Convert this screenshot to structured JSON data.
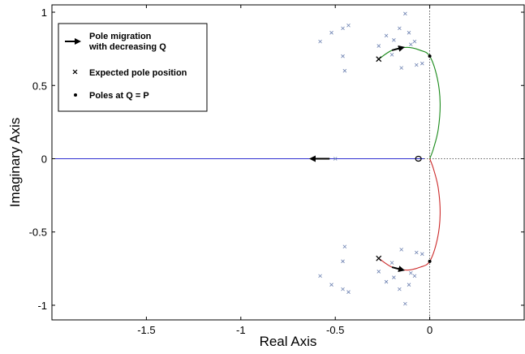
{
  "chart_data": {
    "type": "scatter",
    "title": "",
    "xlabel": "Real Axis",
    "ylabel": "Imaginary Axis",
    "xlim": [
      -2.0,
      0.5
    ],
    "ylim": [
      -1.1,
      1.05
    ],
    "xticks": [
      -1.5,
      -1,
      -0.5,
      0
    ],
    "xtick_labels": [
      "-1.5",
      "-1",
      "-0.5",
      "0"
    ],
    "yticks": [
      1,
      0.5,
      0,
      -0.5,
      -1
    ],
    "ytick_labels": [
      "1",
      "0.5",
      "0",
      "-0.5",
      "-1"
    ],
    "grid": false,
    "legend_position": "top-left",
    "legend": [
      {
        "label": "Pole migration\nwith decreasing Q",
        "marker": "arrow"
      },
      {
        "label": "Expected pole position",
        "marker": "x"
      },
      {
        "label": "Poles at Q = P",
        "marker": "dot"
      }
    ],
    "reference_lines": [
      {
        "orientation": "vertical",
        "value": 0,
        "style": "dotted"
      },
      {
        "orientation": "horizontal",
        "value": 0,
        "style": "dotted"
      }
    ],
    "series": [
      {
        "color": "#3030d0",
        "style": "line",
        "x": [
          -2.0,
          -0.03
        ],
        "y": [
          0,
          0
        ]
      },
      {
        "color": "#1a8a1a",
        "style": "line",
        "x": [
          -0.27,
          -0.2,
          -0.12,
          -0.05,
          0.0,
          0.04,
          0.055,
          0.045,
          0.02,
          0.0
        ],
        "y": [
          0.68,
          0.74,
          0.76,
          0.74,
          0.7,
          0.55,
          0.38,
          0.2,
          0.07,
          0.0
        ]
      },
      {
        "color": "#cc2a2a",
        "style": "line",
        "x": [
          0.0,
          0.02,
          0.045,
          0.055,
          0.04,
          0.0,
          -0.05,
          -0.12,
          -0.2,
          -0.27
        ],
        "y": [
          0.0,
          -0.07,
          -0.2,
          -0.38,
          -0.55,
          -0.7,
          -0.74,
          -0.76,
          -0.74,
          -0.68
        ]
      },
      {
        "name": "Expected pole position",
        "color": "#6a7fb0",
        "style": "x",
        "x": [
          -0.58,
          -0.52,
          -0.46,
          -0.43,
          -0.46,
          -0.45,
          -0.27,
          -0.23,
          -0.19,
          -0.16,
          -0.13,
          -0.11,
          -0.1,
          -0.15,
          -0.07,
          -0.04,
          -0.08,
          -0.2,
          -0.5,
          -0.58,
          -0.52,
          -0.46,
          -0.43,
          -0.46,
          -0.45,
          -0.27,
          -0.23,
          -0.19,
          -0.16,
          -0.13,
          -0.11,
          -0.1,
          -0.15,
          -0.07,
          -0.04,
          -0.08,
          -0.2
        ],
        "y": [
          0.8,
          0.86,
          0.89,
          0.91,
          0.7,
          0.6,
          0.77,
          0.84,
          0.81,
          0.89,
          0.99,
          0.86,
          0.78,
          0.62,
          0.64,
          0.65,
          0.8,
          0.71,
          0.0,
          -0.8,
          -0.86,
          -0.89,
          -0.91,
          -0.7,
          -0.6,
          -0.77,
          -0.84,
          -0.81,
          -0.89,
          -0.99,
          -0.86,
          -0.78,
          -0.62,
          -0.64,
          -0.65,
          -0.8,
          -0.71
        ]
      },
      {
        "name": "Poles at Q = P",
        "color": "#000000",
        "style": "dot",
        "x": [
          0.0,
          0.0
        ],
        "y": [
          0.7,
          -0.7
        ]
      }
    ],
    "highlight_markers": [
      {
        "type": "x",
        "x": -0.27,
        "y": 0.68
      },
      {
        "type": "x",
        "x": -0.27,
        "y": -0.68
      },
      {
        "type": "circle",
        "x": -0.06,
        "y": 0.0
      }
    ],
    "arrows": [
      {
        "from": [
          -0.2,
          0.74
        ],
        "to": [
          -0.14,
          0.76
        ]
      },
      {
        "from": [
          -0.2,
          -0.74
        ],
        "to": [
          -0.14,
          -0.76
        ]
      },
      {
        "from": [
          -0.53,
          0.0
        ],
        "to": [
          -0.63,
          0.0
        ]
      }
    ]
  }
}
